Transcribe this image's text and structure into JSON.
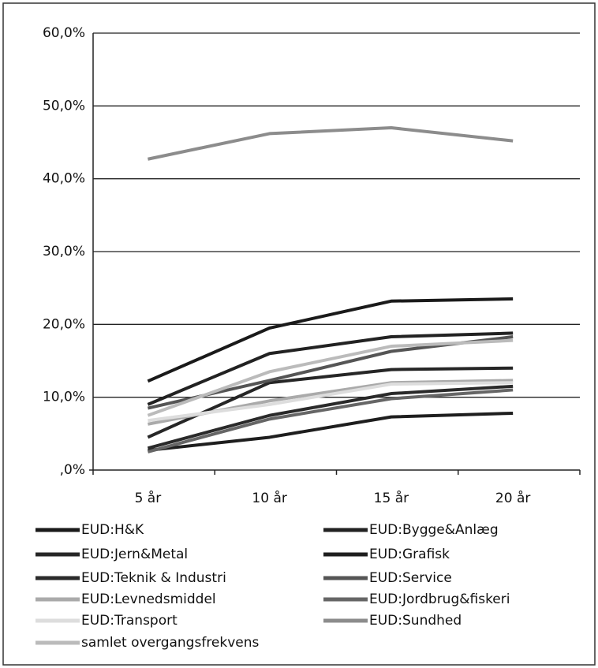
{
  "chart_data": {
    "type": "line",
    "categories": [
      "5 år",
      "10 år",
      "15 år",
      "20 år"
    ],
    "ylim": [
      0,
      60
    ],
    "yticks": [
      {
        "value": 0,
        "label": ",0%"
      },
      {
        "value": 10,
        "label": "10,0%"
      },
      {
        "value": 20,
        "label": "20,0%"
      },
      {
        "value": 30,
        "label": "30,0%"
      },
      {
        "value": 40,
        "label": "40,0%"
      },
      {
        "value": 50,
        "label": "50,0%"
      },
      {
        "value": 60,
        "label": "60,0%"
      }
    ],
    "grid": true,
    "series": [
      {
        "name": "EUD:H&K",
        "color": "#1a1a1a",
        "values": [
          12.2,
          19.5,
          23.2,
          23.5
        ]
      },
      {
        "name": "EUD:Bygge&Anlæg",
        "color": "#222222",
        "values": [
          9,
          16,
          18.3,
          18.8
        ]
      },
      {
        "name": "EUD:Jern&Metal",
        "color": "#262626",
        "values": [
          4.5,
          12,
          13.8,
          14
        ]
      },
      {
        "name": "EUD:Grafisk",
        "color": "#1e1e1e",
        "values": [
          2.7,
          4.5,
          7.3,
          7.8
        ]
      },
      {
        "name": "EUD:Teknik & Industri",
        "color": "#2a2a2a",
        "values": [
          3,
          7.5,
          10.5,
          11.5
        ]
      },
      {
        "name": "EUD:Service",
        "color": "#555555",
        "values": [
          8.5,
          12.3,
          16.3,
          18.3
        ]
      },
      {
        "name": "EUD:Levnedsmiddel",
        "color": "#aaaaaa",
        "values": [
          6.3,
          9.5,
          12,
          12.3
        ]
      },
      {
        "name": "EUD:Jordbrug&fiskeri",
        "color": "#666666",
        "values": [
          2.5,
          7,
          9.8,
          11
        ]
      },
      {
        "name": "EUD:Transport",
        "color": "#dddddd",
        "values": [
          6.8,
          9,
          11.8,
          12
        ]
      },
      {
        "name": "EUD:Sundhed",
        "color": "#8c8c8c",
        "values": [
          42.7,
          46.2,
          47,
          45.2
        ]
      },
      {
        "name": "samlet overgangsfrekvens",
        "color": "#bbbbbb",
        "values": [
          7.5,
          13.5,
          17,
          17.8
        ]
      }
    ]
  }
}
